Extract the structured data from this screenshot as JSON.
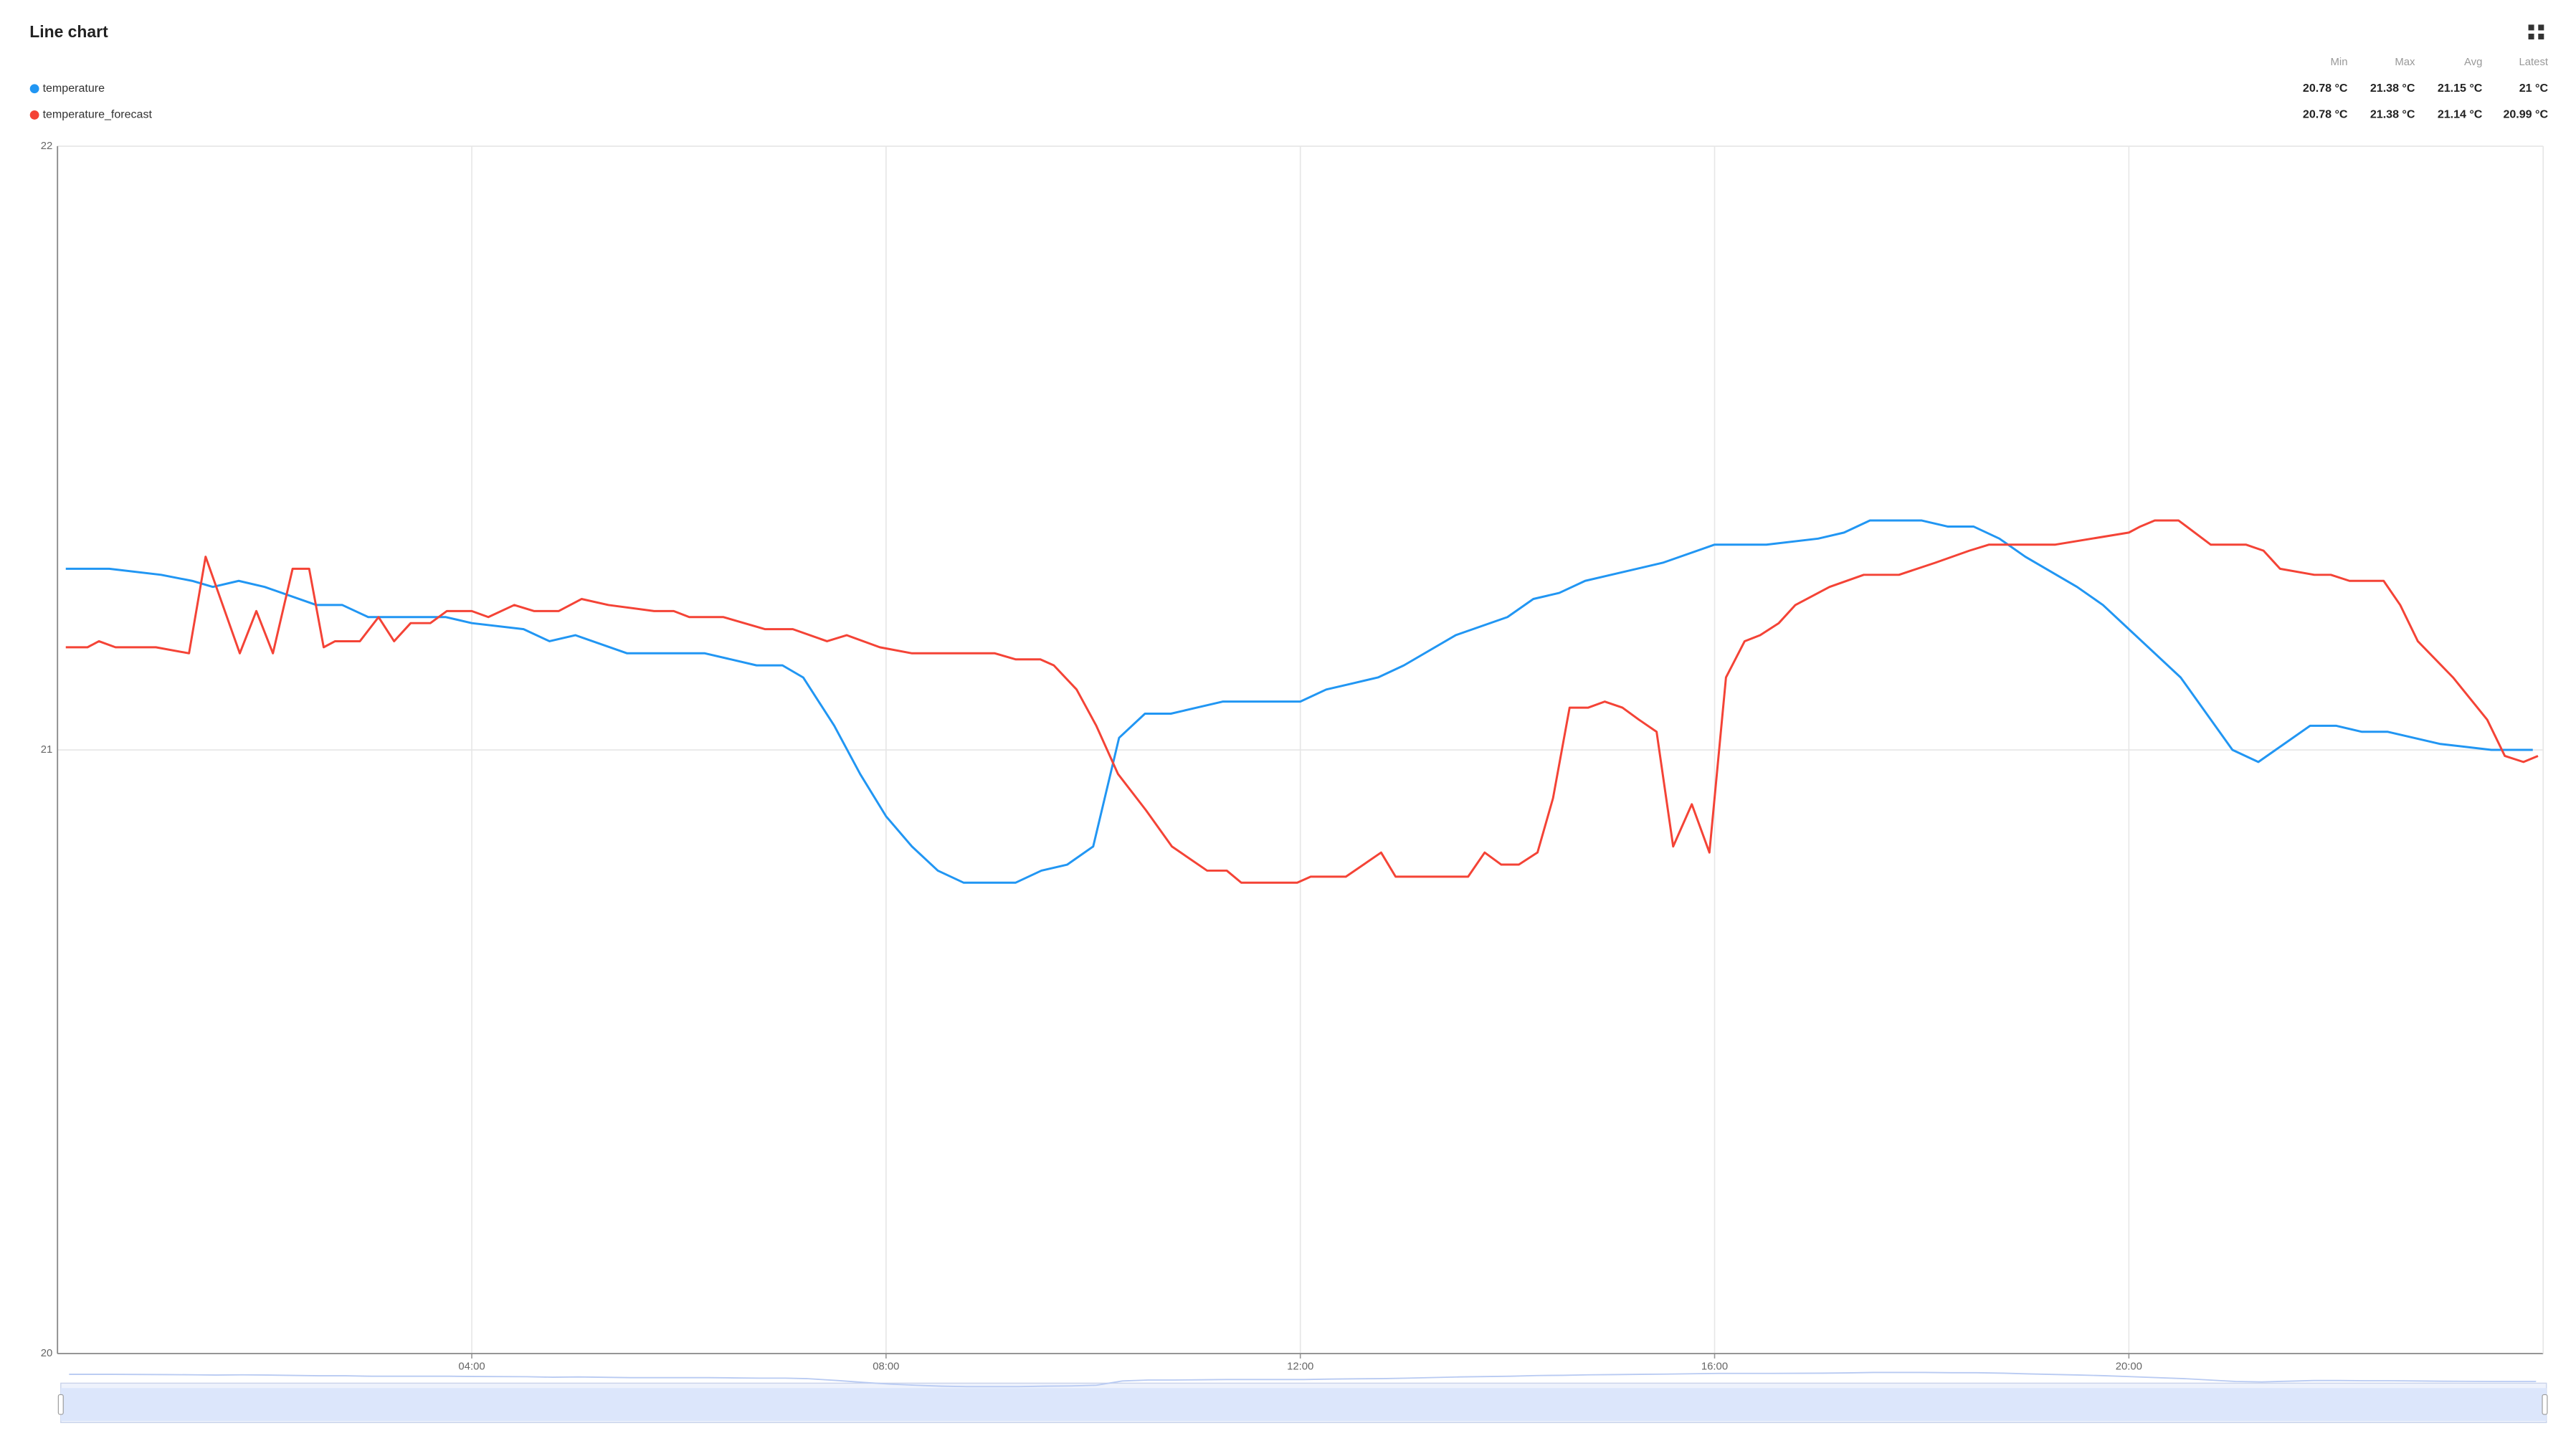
{
  "chart_data": {
    "type": "line",
    "title": "Line chart",
    "legend_columns": [
      "Min",
      "Max",
      "Avg",
      "Latest"
    ],
    "xlim": [
      0,
      24
    ],
    "xticks": [
      {
        "value": 4,
        "label": "04:00"
      },
      {
        "value": 8,
        "label": "08:00"
      },
      {
        "value": 12,
        "label": "12:00"
      },
      {
        "value": 16,
        "label": "16:00"
      },
      {
        "value": 20,
        "label": "20:00"
      }
    ],
    "ylim": [
      20,
      22
    ],
    "yticks": [
      20,
      21,
      22
    ],
    "grid": true,
    "series": [
      {
        "name": "temperature",
        "color": "#2196f3",
        "stats": [
          "20.78 °C",
          "21.38 °C",
          "21.15 °C",
          "21 °C"
        ],
        "x": [
          0.08,
          0.5,
          1.0,
          1.3,
          1.5,
          1.75,
          2.0,
          2.5,
          2.75,
          3.0,
          3.25,
          3.75,
          4.0,
          4.5,
          4.75,
          5.0,
          5.5,
          5.75,
          6.25,
          6.5,
          6.75,
          7.0,
          7.2,
          7.5,
          7.75,
          8.0,
          8.25,
          8.5,
          8.75,
          9.25,
          9.5,
          9.75,
          10.0,
          10.25,
          10.5,
          10.75,
          11.0,
          11.25,
          11.5,
          12.0,
          12.25,
          12.5,
          12.75,
          13.0,
          13.5,
          14.0,
          14.25,
          14.5,
          14.75,
          15.0,
          15.5,
          16.0,
          16.5,
          17.0,
          17.25,
          17.5,
          18.0,
          18.25,
          18.5,
          18.75,
          19.0,
          19.5,
          19.75,
          20.0,
          20.5,
          21.0,
          21.25,
          21.5,
          21.75,
          22.0,
          22.25,
          22.5,
          22.75,
          23.0,
          23.5,
          23.75,
          23.9
        ],
        "values": [
          21.3,
          21.3,
          21.29,
          21.28,
          21.27,
          21.28,
          21.27,
          21.24,
          21.24,
          21.22,
          21.22,
          21.22,
          21.21,
          21.2,
          21.18,
          21.19,
          21.16,
          21.16,
          21.16,
          21.15,
          21.14,
          21.14,
          21.12,
          21.04,
          20.96,
          20.89,
          20.84,
          20.8,
          20.78,
          20.78,
          20.8,
          20.81,
          20.84,
          21.02,
          21.06,
          21.06,
          21.07,
          21.08,
          21.08,
          21.08,
          21.1,
          21.11,
          21.12,
          21.14,
          21.19,
          21.22,
          21.25,
          21.26,
          21.28,
          21.29,
          21.31,
          21.34,
          21.34,
          21.35,
          21.36,
          21.38,
          21.38,
          21.37,
          21.37,
          21.35,
          21.32,
          21.27,
          21.24,
          21.2,
          21.12,
          21.0,
          20.98,
          21.01,
          21.04,
          21.04,
          21.03,
          21.03,
          21.02,
          21.01,
          21.0,
          21.0,
          21.0
        ]
      },
      {
        "name": "temperature_forecast",
        "color": "#f44336",
        "stats": [
          "20.78 °C",
          "21.38 °C",
          "21.14 °C",
          "20.99 °C"
        ],
        "x": [
          0.08,
          0.29,
          0.4,
          0.56,
          0.95,
          1.27,
          1.43,
          1.76,
          1.92,
          2.08,
          2.27,
          2.43,
          2.57,
          2.68,
          2.92,
          3.1,
          3.25,
          3.41,
          3.6,
          3.76,
          4.0,
          4.16,
          4.41,
          4.6,
          4.84,
          5.06,
          5.32,
          5.76,
          5.95,
          6.1,
          6.43,
          6.63,
          6.83,
          7.1,
          7.43,
          7.62,
          7.94,
          8.25,
          9.05,
          9.25,
          9.49,
          9.62,
          9.84,
          10.03,
          10.24,
          10.51,
          10.76,
          11.1,
          11.29,
          11.43,
          11.97,
          12.1,
          12.44,
          12.78,
          12.92,
          13.62,
          13.78,
          13.94,
          14.11,
          14.29,
          14.44,
          14.6,
          14.78,
          14.94,
          15.11,
          15.27,
          15.44,
          15.6,
          15.78,
          15.95,
          16.11,
          16.29,
          16.44,
          16.62,
          16.78,
          17.11,
          17.44,
          17.78,
          18.13,
          18.46,
          18.65,
          19.29,
          20.0,
          20.11,
          20.25,
          20.48,
          20.79,
          21.13,
          21.3,
          21.46,
          21.79,
          21.95,
          22.13,
          22.46,
          22.62,
          22.79,
          23.13,
          23.46,
          23.63,
          23.81,
          23.95
        ],
        "values": [
          21.17,
          21.17,
          21.18,
          21.17,
          21.17,
          21.16,
          21.32,
          21.16,
          21.23,
          21.16,
          21.3,
          21.3,
          21.17,
          21.18,
          21.18,
          21.22,
          21.18,
          21.21,
          21.21,
          21.23,
          21.23,
          21.22,
          21.24,
          21.23,
          21.23,
          21.25,
          21.24,
          21.23,
          21.23,
          21.22,
          21.22,
          21.21,
          21.2,
          21.2,
          21.18,
          21.19,
          21.17,
          21.16,
          21.16,
          21.15,
          21.15,
          21.14,
          21.1,
          21.04,
          20.96,
          20.9,
          20.84,
          20.8,
          20.8,
          20.78,
          20.78,
          20.79,
          20.79,
          20.83,
          20.79,
          20.79,
          20.83,
          20.81,
          20.81,
          20.83,
          20.92,
          21.07,
          21.07,
          21.08,
          21.07,
          21.05,
          21.03,
          20.84,
          20.91,
          20.83,
          21.12,
          21.18,
          21.19,
          21.21,
          21.24,
          21.27,
          21.29,
          21.29,
          21.31,
          21.33,
          21.34,
          21.34,
          21.36,
          21.37,
          21.38,
          21.38,
          21.34,
          21.34,
          21.33,
          21.3,
          21.29,
          21.29,
          21.28,
          21.28,
          21.24,
          21.18,
          21.12,
          21.05,
          20.99,
          20.98,
          20.99
        ]
      }
    ]
  }
}
